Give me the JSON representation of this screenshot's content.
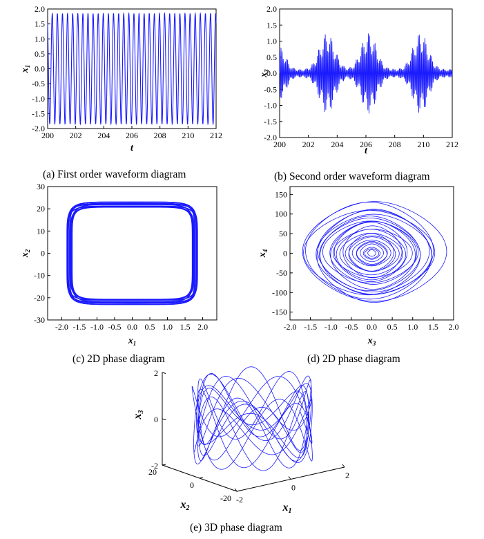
{
  "charts": [
    {
      "id": "a",
      "caption": "(a) First order waveform diagram",
      "xlabel": "t",
      "ylabel_main": "x",
      "ylabel_sub": "1",
      "xticks": [
        "200",
        "202",
        "204",
        "206",
        "208",
        "210",
        "212"
      ],
      "yticks": [
        "2.0",
        "1.5",
        "1.0",
        "0.5",
        "0.0",
        "-0.5",
        "-1.0",
        "-1.5",
        "-2.0"
      ]
    },
    {
      "id": "b",
      "caption": "(b) Second order waveform diagram",
      "xlabel": "t",
      "ylabel_main": "x",
      "ylabel_sub": "3",
      "xticks": [
        "200",
        "202",
        "204",
        "206",
        "208",
        "210",
        "212"
      ],
      "yticks": [
        "2.0",
        "1.5",
        "1.0",
        "0.5",
        "0.0",
        "-0.5",
        "-1.0",
        "-1.5",
        "-2.0"
      ]
    },
    {
      "id": "c",
      "caption": "(c) 2D phase diagram",
      "xlabel_main": "x",
      "xlabel_sub": "1",
      "ylabel_main": "x",
      "ylabel_sub": "2",
      "xticks": [
        "-2.0",
        "-1.5",
        "-1.0",
        "-0.5",
        "0.0",
        "0.5",
        "1.0",
        "1.5",
        "2.0"
      ],
      "yticks": [
        "30",
        "20",
        "10",
        "0",
        "-10",
        "-20",
        "-30"
      ]
    },
    {
      "id": "d",
      "caption": "(d) 2D phase diagram",
      "xlabel_main": "x",
      "xlabel_sub": "3",
      "ylabel_main": "x",
      "ylabel_sub": "4",
      "xticks": [
        "-2.0",
        "-1.5",
        "-1.0",
        "-0.5",
        "0.0",
        "0.5",
        "1.0",
        "1.5",
        "2.0"
      ],
      "yticks": [
        "150",
        "100",
        "50",
        "0",
        "-50",
        "-100",
        "-150"
      ]
    },
    {
      "id": "e",
      "caption": "(e) 3D phase diagram",
      "x_main": "x",
      "x_sub": "1",
      "y_main": "x",
      "y_sub": "2",
      "z_main": "x",
      "z_sub": "3",
      "zticks": [
        "2",
        "0",
        "-2"
      ],
      "yticks": [
        "20",
        "0",
        "-20"
      ],
      "xticks": [
        "-2",
        "0",
        "2"
      ]
    }
  ],
  "chart_data": [
    {
      "type": "line",
      "panel": "a",
      "series": [
        {
          "x_range": [
            200,
            212
          ],
          "amplitude": 1.85,
          "cycles": 33
        }
      ],
      "xlim": [
        200,
        212
      ],
      "ylim": [
        -2.0,
        2.0
      ],
      "color": "#1a1aff"
    },
    {
      "type": "line",
      "panel": "b",
      "series": [
        {
          "x_range": [
            200,
            212
          ],
          "envelope_peaks_t": [
            203.3,
            206.2,
            209.8
          ],
          "max_amplitude": 1.7
        }
      ],
      "xlim": [
        200,
        212
      ],
      "ylim": [
        -2.0,
        2.0
      ],
      "color": "#1a1aff"
    },
    {
      "type": "line",
      "panel": "c",
      "series": [
        {
          "x_extent": [
            -1.85,
            1.85
          ],
          "y_extent": [
            -23,
            23
          ]
        }
      ],
      "xlim": [
        -2.4,
        2.4
      ],
      "ylim": [
        -30,
        30
      ],
      "color": "#1a1aff"
    },
    {
      "type": "line",
      "panel": "d",
      "series": [
        {
          "x_extent": [
            -1.6,
            1.6
          ],
          "y_extent": [
            -140,
            140
          ]
        }
      ],
      "xlim": [
        -2.0,
        2.0
      ],
      "ylim": [
        -170,
        170
      ],
      "color": "#1a1aff"
    },
    {
      "type": "line",
      "panel": "e",
      "series": [
        {
          "x1_range": [
            -2,
            2
          ],
          "x2_range": [
            -20,
            20
          ],
          "x3_range": [
            -2,
            2
          ]
        }
      ],
      "color": "#1a1aff"
    }
  ]
}
